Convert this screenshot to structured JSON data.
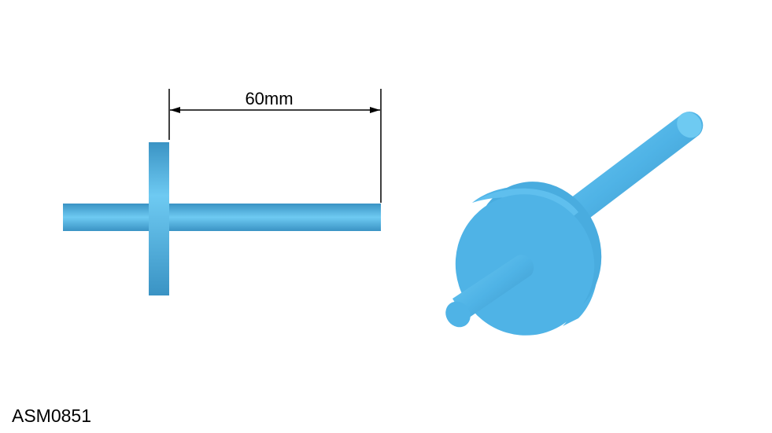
{
  "drawing": {
    "dimension_label": "60mm",
    "part_code": "ASM0851",
    "colors": {
      "part_main": "#4fb3e6",
      "part_light": "#6ecaf2",
      "part_dark": "#3a93c4",
      "dimension_line": "#000000"
    }
  }
}
